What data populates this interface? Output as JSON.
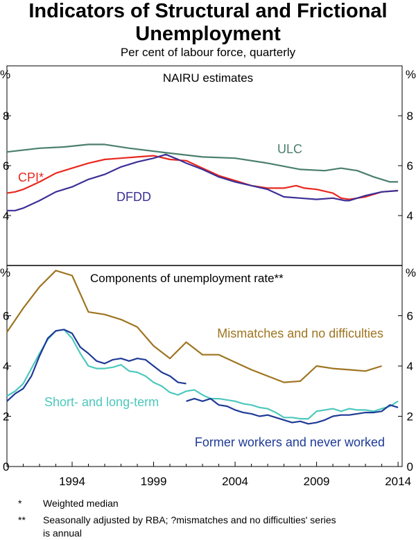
{
  "title_line1": "Indicators of Structural and Frictional",
  "title_line2": "Unemployment",
  "subtitle": "Per cent of labour force, quarterly",
  "footnotes": [
    {
      "marker": "*",
      "text": "Weighted median"
    },
    {
      "marker": "**",
      "text": "Seasonally adjusted by RBA; ?mismatches and no difficulties' series",
      "text2": "is annual"
    }
  ],
  "chart_data": [
    {
      "type": "line",
      "title": "NAIRU estimates",
      "ylabel": "%",
      "ylim": [
        2,
        10
      ],
      "yticks": [
        "4",
        "6",
        "8"
      ],
      "xlim": [
        1990.0,
        2014.25
      ],
      "colors": {
        "ULC": "#4a7f6b",
        "CPI*": "#e8281e",
        "DFDD": "#3b2f97"
      },
      "series": [
        {
          "name": "ULC",
          "label_text": "ULC",
          "x": [
            1990.0,
            1992.0,
            1993.5,
            1995.0,
            1996.0,
            1997.5,
            2000.0,
            2002.0,
            2004.0,
            2006.0,
            2008.0,
            2009.5,
            2010.5,
            2011.5,
            2012.5,
            2013.5,
            2014.0
          ],
          "y": [
            6.55,
            6.7,
            6.75,
            6.85,
            6.85,
            6.7,
            6.5,
            6.35,
            6.3,
            6.1,
            5.85,
            5.8,
            5.9,
            5.8,
            5.55,
            5.35,
            5.35
          ]
        },
        {
          "name": "CPI*",
          "label_text": "CPI*",
          "x": [
            1990.0,
            1990.5,
            1991.0,
            1992.0,
            1993.0,
            1994.0,
            1995.0,
            1996.0,
            1997.0,
            1998.0,
            1999.0,
            2000.0,
            2001.0,
            2002.0,
            2003.0,
            2004.0,
            2005.0,
            2006.0,
            2007.0,
            2007.75,
            2008.25,
            2009.0,
            2010.0,
            2010.5,
            2011.0,
            2012.0,
            2013.0,
            2014.0
          ],
          "y": [
            4.9,
            4.95,
            5.05,
            5.35,
            5.7,
            5.9,
            6.1,
            6.25,
            6.3,
            6.35,
            6.4,
            6.25,
            6.2,
            5.9,
            5.6,
            5.4,
            5.2,
            5.1,
            5.1,
            5.2,
            5.1,
            5.05,
            4.9,
            4.7,
            4.65,
            4.75,
            4.95,
            5.0
          ]
        },
        {
          "name": "DFDD",
          "label_text": "DFDD",
          "x": [
            1990.0,
            1990.5,
            1991.0,
            1992.0,
            1993.0,
            1994.0,
            1995.0,
            1996.0,
            1997.0,
            1998.0,
            1999.0,
            1999.75,
            2000.5,
            2001.0,
            2002.0,
            2003.0,
            2004.0,
            2005.0,
            2006.0,
            2007.0,
            2008.0,
            2009.0,
            2010.0,
            2010.75,
            2011.0,
            2012.0,
            2013.0,
            2014.0
          ],
          "y": [
            4.2,
            4.2,
            4.3,
            4.6,
            4.95,
            5.15,
            5.45,
            5.65,
            5.95,
            6.15,
            6.3,
            6.45,
            6.25,
            6.1,
            5.85,
            5.55,
            5.35,
            5.2,
            5.05,
            4.75,
            4.7,
            4.65,
            4.7,
            4.6,
            4.6,
            4.8,
            4.95,
            5.0
          ]
        }
      ]
    },
    {
      "type": "line",
      "title": "Components of unemployment rate**",
      "ylabel": "%",
      "ylim": [
        0,
        8
      ],
      "yticks": [
        "0",
        "2",
        "4",
        "6"
      ],
      "xlim": [
        1990.0,
        2014.25
      ],
      "xticks": [
        "1994",
        "1999",
        "2004",
        "2009",
        "2014"
      ],
      "colors": {
        "Mismatches and no difficulties": "#9e7420",
        "Short- and long-term": "#4cc8bc",
        "Former workers and never worked": "#1e3a96"
      },
      "series": [
        {
          "name": "Mismatches and no difficulties",
          "label_text": "Mismatches and no difficulties",
          "x": [
            1990.0,
            1991.0,
            1992.0,
            1993.0,
            1994.0,
            1995.0,
            1996.0,
            1997.0,
            1998.0,
            1999.0,
            2000.0,
            2001.0,
            2002.0,
            2003.0,
            2004.0,
            2005.0,
            2006.0,
            2007.0,
            2008.0,
            2009.0,
            2010.0,
            2011.0,
            2012.0,
            2013.0
          ],
          "y": [
            5.35,
            6.3,
            7.15,
            7.8,
            7.6,
            6.15,
            6.05,
            5.85,
            5.55,
            4.8,
            4.3,
            4.95,
            4.45,
            4.45,
            4.15,
            3.85,
            3.6,
            3.35,
            3.4,
            4.0,
            3.9,
            3.85,
            3.8,
            4.0
          ]
        },
        {
          "name": "Short- and long-term",
          "label_text": "Short- and long-term",
          "x": [
            1990.0,
            1990.5,
            1991.0,
            1991.5,
            1992.0,
            1992.5,
            1993.0,
            1993.5,
            1994.0,
            1994.5,
            1995.0,
            1995.5,
            1996.0,
            1996.5,
            1997.0,
            1997.5,
            1998.0,
            1998.5,
            1999.0,
            1999.5,
            2000.0,
            2000.5,
            2001.0,
            2001.5,
            2002.0,
            2002.5,
            2003.0,
            2003.5,
            2004.0,
            2004.5,
            2005.0,
            2005.5,
            2006.0,
            2006.5,
            2007.0,
            2007.5,
            2008.0,
            2008.5,
            2009.0,
            2009.5,
            2010.0,
            2010.5,
            2011.0,
            2011.5,
            2012.0,
            2012.5,
            2013.0,
            2013.5,
            2014.0
          ],
          "y": [
            2.8,
            3.0,
            3.3,
            3.9,
            4.5,
            5.05,
            5.4,
            5.45,
            5.1,
            4.5,
            4.0,
            3.9,
            3.9,
            3.95,
            4.05,
            3.8,
            3.75,
            3.6,
            3.35,
            3.2,
            2.95,
            2.85,
            3.0,
            3.05,
            2.85,
            2.7,
            2.7,
            2.65,
            2.6,
            2.5,
            2.45,
            2.35,
            2.3,
            2.15,
            1.95,
            1.95,
            1.9,
            1.9,
            2.2,
            2.25,
            2.3,
            2.2,
            2.3,
            2.25,
            2.25,
            2.2,
            2.3,
            2.4,
            2.6
          ]
        },
        {
          "name": "Former workers and never worked",
          "label_text": "Former workers and never worked",
          "x": [
            1990.0,
            1990.5,
            1991.0,
            1991.5,
            1992.0,
            1992.5,
            1993.0,
            1993.5,
            1994.0,
            1994.5,
            1995.0,
            1995.5,
            1996.0,
            1996.5,
            1997.0,
            1997.5,
            1998.0,
            1998.5,
            1999.0,
            1999.5,
            2000.0,
            2000.5,
            2001.0,
            null,
            2001.0,
            2001.5,
            2002.0,
            2002.5,
            2003.0,
            2003.5,
            2004.0,
            2004.5,
            2005.0,
            2005.5,
            2006.0,
            2006.5,
            2007.0,
            2007.5,
            2008.0,
            2008.5,
            2009.0,
            2009.5,
            2010.0,
            2010.5,
            2011.0,
            2011.5,
            2012.0,
            2012.5,
            2013.0,
            2013.5,
            2014.0
          ],
          "y": [
            2.6,
            2.9,
            3.1,
            3.6,
            4.4,
            5.1,
            5.4,
            5.45,
            5.3,
            4.75,
            4.5,
            4.2,
            4.1,
            4.25,
            4.3,
            4.2,
            4.3,
            4.25,
            4.0,
            3.75,
            3.6,
            3.35,
            3.3,
            null,
            2.6,
            2.7,
            2.6,
            2.7,
            2.45,
            2.4,
            2.25,
            2.15,
            2.1,
            2.0,
            2.05,
            1.95,
            1.85,
            1.75,
            1.8,
            1.7,
            1.75,
            1.85,
            2.0,
            2.05,
            2.05,
            2.1,
            2.15,
            2.15,
            2.2,
            2.45,
            2.35
          ]
        }
      ]
    }
  ]
}
